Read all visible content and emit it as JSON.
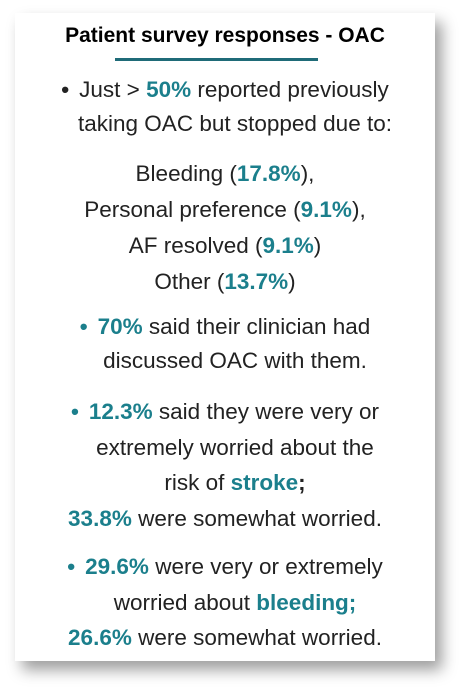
{
  "title": "Patient survey responses - OAC",
  "colors": {
    "accent": "#1b7f8c",
    "rule": "#1f6b78",
    "text": "#222222"
  },
  "bullet_glyph": "•",
  "section1": {
    "line1_pre": "Just > ",
    "line1_value": "50%",
    "line1_post": " reported previously",
    "line2": "taking OAC but stopped due to:",
    "reasons": [
      {
        "label": "Bleeding (",
        "value": "17.8%",
        "suffix": "),"
      },
      {
        "label": "Personal preference (",
        "value": "9.1%",
        "suffix": "),"
      },
      {
        "label": "AF resolved (",
        "value": "9.1%",
        "suffix": ")"
      },
      {
        "label": "Other (",
        "value": "13.7%",
        "suffix": ")"
      }
    ]
  },
  "section2": {
    "value": "70%",
    "line1_post": " said their clinician had",
    "line2": "discussed OAC with them."
  },
  "section3": {
    "value": "12.3%",
    "line1_post": " said they were very or",
    "line2": "extremely worried about the",
    "line3_pre": "risk of ",
    "line3_keyword": "stroke",
    "line3_punct": ";",
    "line4_value": "33.8%",
    "line4_post": " were somewhat worried."
  },
  "section4": {
    "value": "29.6%",
    "line1_post": " were very or extremely",
    "line2_pre": "worried about ",
    "line2_keyword": "bleeding;",
    "line3_value": "26.6%",
    "line3_post": " were somewhat worried."
  }
}
